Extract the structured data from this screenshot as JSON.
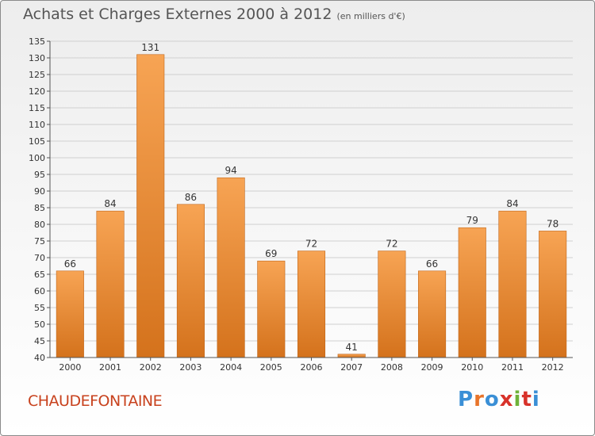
{
  "title": "Achats et Charges Externes 2000 à 2012",
  "unit": "(en milliers d'€)",
  "commune": "CHAUDEFONTAINE",
  "logo": {
    "letters": [
      "P",
      "r",
      "o",
      "x",
      "i",
      "t",
      "i"
    ],
    "colors": [
      "#3a8fd6",
      "#e8742a",
      "#3a8fd6",
      "#d8322a",
      "#6fb23a",
      "#d8322a",
      "#3a8fd6"
    ]
  },
  "colors": {
    "bar_top": "#f7a454",
    "bar_bottom": "#d4721c",
    "grid": "#d0d0d0",
    "axis": "#555555"
  },
  "chart_data": {
    "type": "bar",
    "title": "Achats et Charges Externes 2000 à 2012",
    "categories": [
      "2000",
      "2001",
      "2002",
      "2003",
      "2004",
      "2005",
      "2006",
      "2007",
      "2008",
      "2009",
      "2010",
      "2011",
      "2012"
    ],
    "values": [
      66,
      84,
      131,
      86,
      94,
      69,
      72,
      41,
      72,
      66,
      79,
      84,
      78
    ],
    "ylim": [
      40,
      135
    ],
    "ytick_step": 5,
    "grid": true,
    "xlabel": "",
    "ylabel": ""
  }
}
